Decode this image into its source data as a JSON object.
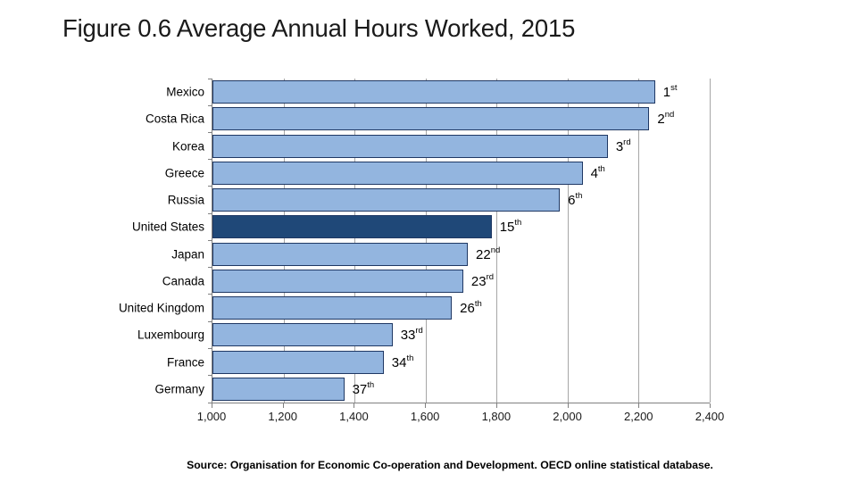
{
  "title": "Figure 0.6 Average Annual Hours Worked, 2015",
  "source_note": "Source: Organisation for Economic Co-operation and Development. OECD online statistical database.",
  "chart_data": {
    "type": "bar",
    "orientation": "horizontal",
    "title": "Figure 0.6 Average Annual Hours Worked, 2015",
    "xlabel": "",
    "ylabel": "",
    "xlim": [
      1000,
      2400
    ],
    "xticks": [
      1000,
      1200,
      1400,
      1600,
      1800,
      2000,
      2200,
      2400
    ],
    "xtick_labels": [
      "1,000",
      "1,200",
      "1,400",
      "1,600",
      "1,800",
      "2,000",
      "2,200",
      "2,400"
    ],
    "grid": true,
    "legend": false,
    "categories": [
      "Mexico",
      "Costa Rica",
      "Korea",
      "Greece",
      "Russia",
      "United States",
      "Japan",
      "Canada",
      "United Kingdom",
      "Luxembourg",
      "France",
      "Germany"
    ],
    "values": [
      2246,
      2230,
      2113,
      2042,
      1978,
      1786,
      1719,
      1706,
      1674,
      1507,
      1482,
      1371
    ],
    "rank_labels": [
      {
        "number": "1",
        "ordinal": "st"
      },
      {
        "number": "2",
        "ordinal": "nd"
      },
      {
        "number": "3",
        "ordinal": "rd"
      },
      {
        "number": "4",
        "ordinal": "th"
      },
      {
        "number": "6",
        "ordinal": "th"
      },
      {
        "number": "15",
        "ordinal": "th"
      },
      {
        "number": "22",
        "ordinal": "nd"
      },
      {
        "number": "23",
        "ordinal": "rd"
      },
      {
        "number": "26",
        "ordinal": "th"
      },
      {
        "number": "33",
        "ordinal": "rd"
      },
      {
        "number": "34",
        "ordinal": "th"
      },
      {
        "number": "37",
        "ordinal": "th"
      }
    ],
    "highlight_index": 5,
    "colors": {
      "bar_fill": "#93b5df",
      "bar_highlight": "#1f4878",
      "bar_border": "#1f3864",
      "gridline": "#a6a6a6",
      "axis_line": "#808080"
    }
  }
}
